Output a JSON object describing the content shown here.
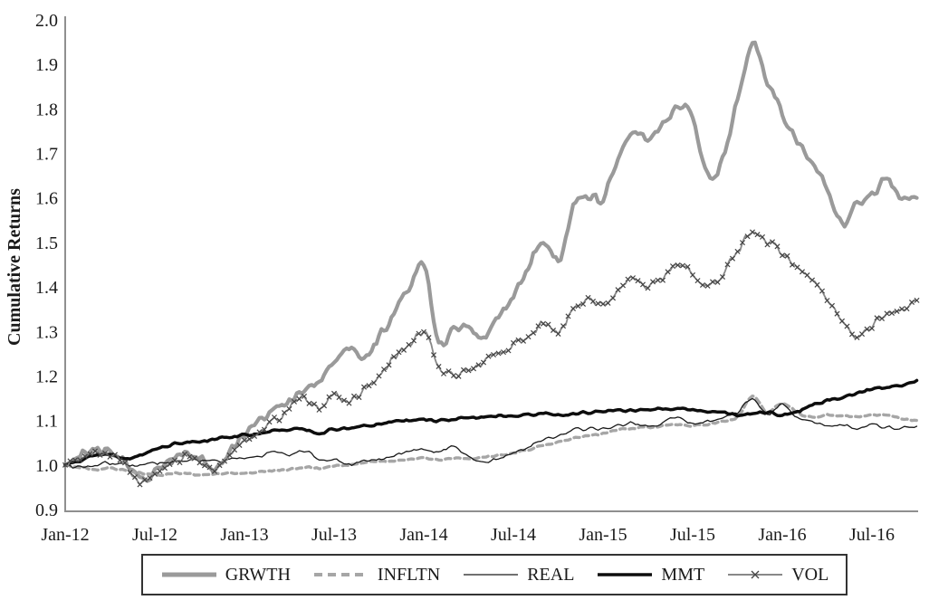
{
  "chart_data": {
    "type": "line",
    "title": "",
    "xlabel": "",
    "ylabel": "Cumulative Returns",
    "ylim": [
      0.9,
      2.0
    ],
    "ytick_step": 0.1,
    "y_tick_labels": [
      "0.9",
      "1.0",
      "1.1",
      "1.2",
      "1.3",
      "1.4",
      "1.5",
      "1.6",
      "1.7",
      "1.8",
      "1.9",
      "2.0"
    ],
    "x_tick_labels": [
      "Jan-12",
      "Jul-12",
      "Jan-13",
      "Jul-13",
      "Jan-14",
      "Jul-14",
      "Jan-15",
      "Jul-15",
      "Jan-16",
      "Jul-16"
    ],
    "x_start": "Jan-12",
    "x_end": "Oct-16",
    "x_unit": "month",
    "grid": false,
    "legend_position": "bottom",
    "axis_color": "#8f8f8f",
    "series": [
      {
        "name": "GRWTH",
        "style": "thick-gray",
        "color": "#9a9a9a",
        "line_width": 4.2,
        "noise": 0.014,
        "values": [
          1.0,
          1.02,
          1.035,
          1.03,
          1.005,
          0.965,
          0.985,
          1.01,
          1.03,
          1.015,
          0.99,
          1.03,
          1.065,
          1.095,
          1.12,
          1.145,
          1.17,
          1.195,
          1.225,
          1.26,
          1.235,
          1.29,
          1.34,
          1.395,
          1.445,
          1.275,
          1.305,
          1.31,
          1.29,
          1.335,
          1.385,
          1.445,
          1.505,
          1.455,
          1.58,
          1.61,
          1.6,
          1.685,
          1.755,
          1.73,
          1.76,
          1.805,
          1.775,
          1.645,
          1.69,
          1.82,
          1.94,
          1.86,
          1.79,
          1.725,
          1.685,
          1.625,
          1.54,
          1.585,
          1.605,
          1.64,
          1.595,
          1.6
        ]
      },
      {
        "name": "INFLTN",
        "style": "dashed-gray",
        "color": "#a6a6a6",
        "line_width": 3.4,
        "noise": 0.0025,
        "values": [
          1.0,
          0.995,
          0.99,
          0.992,
          0.988,
          0.982,
          0.978,
          0.98,
          0.982,
          0.978,
          0.98,
          0.982,
          0.982,
          0.985,
          0.988,
          0.99,
          0.995,
          0.992,
          0.998,
          1.0,
          1.005,
          1.008,
          1.01,
          1.012,
          1.015,
          1.012,
          1.015,
          1.012,
          1.018,
          1.022,
          1.028,
          1.035,
          1.043,
          1.052,
          1.06,
          1.065,
          1.07,
          1.078,
          1.082,
          1.085,
          1.088,
          1.09,
          1.088,
          1.092,
          1.098,
          1.108,
          1.155,
          1.118,
          1.14,
          1.118,
          1.108,
          1.112,
          1.11,
          1.108,
          1.112,
          1.11,
          1.105,
          1.1
        ]
      },
      {
        "name": "REAL",
        "style": "thin-black",
        "color": "#1a1a1a",
        "line_width": 1.3,
        "noise": 0.005,
        "values": [
          1.0,
          0.995,
          1.0,
          1.005,
          1.0,
          0.998,
          1.005,
          1.008,
          1.012,
          1.01,
          1.008,
          1.012,
          1.012,
          1.02,
          1.03,
          1.022,
          1.032,
          1.012,
          1.01,
          1.002,
          1.01,
          1.012,
          1.022,
          1.03,
          1.035,
          1.03,
          1.04,
          1.02,
          1.005,
          1.015,
          1.025,
          1.04,
          1.055,
          1.065,
          1.08,
          1.082,
          1.082,
          1.088,
          1.095,
          1.085,
          1.095,
          1.11,
          1.092,
          1.1,
          1.105,
          1.12,
          1.145,
          1.115,
          1.135,
          1.105,
          1.095,
          1.09,
          1.088,
          1.085,
          1.09,
          1.086,
          1.083,
          1.087
        ]
      },
      {
        "name": "MMT",
        "style": "thick-black",
        "color": "#0d0d0d",
        "line_width": 3.5,
        "noise": 0.0035,
        "values": [
          1.0,
          1.01,
          1.02,
          1.022,
          1.015,
          1.02,
          1.035,
          1.045,
          1.05,
          1.052,
          1.058,
          1.062,
          1.068,
          1.07,
          1.076,
          1.078,
          1.08,
          1.072,
          1.08,
          1.082,
          1.088,
          1.092,
          1.098,
          1.1,
          1.102,
          1.1,
          1.103,
          1.105,
          1.108,
          1.11,
          1.11,
          1.112,
          1.116,
          1.112,
          1.116,
          1.118,
          1.12,
          1.122,
          1.122,
          1.125,
          1.126,
          1.128,
          1.124,
          1.12,
          1.118,
          1.112,
          1.115,
          1.118,
          1.112,
          1.12,
          1.135,
          1.145,
          1.152,
          1.16,
          1.17,
          1.174,
          1.18,
          1.19
        ]
      },
      {
        "name": "VOL",
        "style": "gray-x-marker",
        "color": "#888888",
        "marker_color": "#444444",
        "line_width": 1.8,
        "noise": 0.011,
        "values": [
          1.0,
          1.015,
          1.03,
          1.025,
          1.0,
          0.96,
          0.978,
          1.0,
          1.02,
          1.01,
          0.985,
          1.025,
          1.055,
          1.075,
          1.1,
          1.125,
          1.15,
          1.13,
          1.16,
          1.145,
          1.17,
          1.2,
          1.24,
          1.27,
          1.298,
          1.225,
          1.198,
          1.212,
          1.23,
          1.252,
          1.27,
          1.292,
          1.32,
          1.3,
          1.35,
          1.372,
          1.36,
          1.392,
          1.42,
          1.402,
          1.422,
          1.452,
          1.43,
          1.402,
          1.43,
          1.48,
          1.528,
          1.505,
          1.48,
          1.442,
          1.415,
          1.375,
          1.33,
          1.292,
          1.312,
          1.34,
          1.352,
          1.37
        ]
      }
    ]
  },
  "legend": {
    "items": [
      {
        "label": "GRWTH"
      },
      {
        "label": "INFLTN"
      },
      {
        "label": "REAL"
      },
      {
        "label": "MMT"
      },
      {
        "label": "VOL"
      }
    ]
  }
}
